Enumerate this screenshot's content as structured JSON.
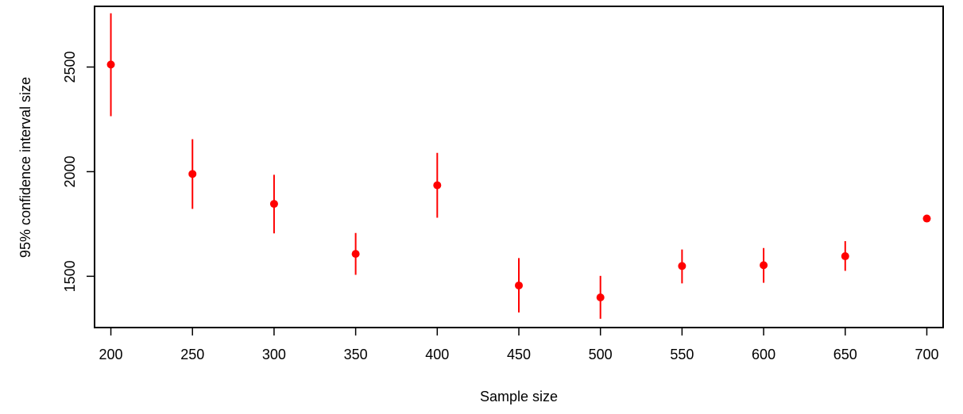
{
  "chart_data": {
    "type": "scatter",
    "title": "",
    "xlabel": "Sample size",
    "ylabel": "95% confidence interval size",
    "xlim": [
      190,
      710
    ],
    "ylim": [
      1255,
      2790
    ],
    "x_ticks": [
      200,
      250,
      300,
      350,
      400,
      450,
      500,
      550,
      600,
      650,
      700
    ],
    "y_ticks": [
      1500,
      2000,
      2500
    ],
    "grid": false,
    "legend": "none",
    "series": [
      {
        "color": "#ff0000",
        "points": [
          {
            "x": 200,
            "y": 2512,
            "low": 2265,
            "high": 2757
          },
          {
            "x": 250,
            "y": 1989,
            "low": 1822,
            "high": 2155
          },
          {
            "x": 300,
            "y": 1846,
            "low": 1705,
            "high": 1985
          },
          {
            "x": 350,
            "y": 1607,
            "low": 1507,
            "high": 1707
          },
          {
            "x": 400,
            "y": 1935,
            "low": 1780,
            "high": 2090
          },
          {
            "x": 450,
            "y": 1456,
            "low": 1327,
            "high": 1587
          },
          {
            "x": 500,
            "y": 1399,
            "low": 1297,
            "high": 1502
          },
          {
            "x": 550,
            "y": 1549,
            "low": 1466,
            "high": 1628
          },
          {
            "x": 600,
            "y": 1553,
            "low": 1469,
            "high": 1635
          },
          {
            "x": 650,
            "y": 1596,
            "low": 1526,
            "high": 1668
          },
          {
            "x": 700,
            "y": 1776,
            "low": 1776,
            "high": 1776
          }
        ]
      }
    ]
  }
}
